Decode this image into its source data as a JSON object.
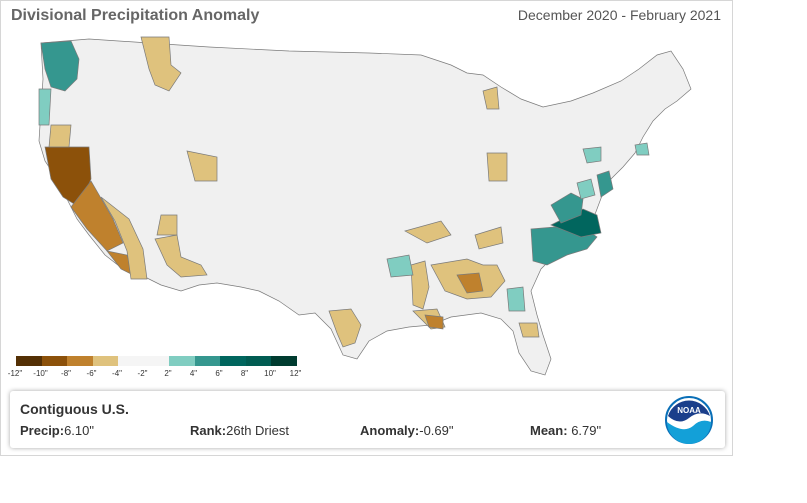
{
  "header": {
    "title": "Divisional Precipitation Anomaly",
    "period": "December 2020 - February 2021"
  },
  "legend": {
    "colors": [
      "#543005",
      "#8c510a",
      "#bf812d",
      "#dfc27d",
      "#f5f5f5",
      "#f5f5f5",
      "#80cdc1",
      "#35978f",
      "#01665e",
      "#015c52",
      "#003c30"
    ],
    "tick_labels": [
      "-12\"",
      "-10\"",
      "-8\"",
      "-6\"",
      "-4\"",
      "-2\"",
      "2\"",
      "4\"",
      "6\"",
      "8\"",
      "10\"",
      "12\""
    ]
  },
  "stats": {
    "region": "Contiguous U.S.",
    "precip_label": "Precip:",
    "precip_value": "6.10\"",
    "rank_label": "Rank:",
    "rank_value": "26th Driest",
    "anomaly_label": "Anomaly:",
    "anomaly_value": "-0.69\"",
    "mean_label": "Mean:",
    "mean_value": "6.79\""
  },
  "logo": {
    "text": "NOAA"
  },
  "map_colors": {
    "land": "#f0f0f0",
    "border": "#7a7a7a",
    "dry_light": "#dfc27d",
    "dry_mid": "#bf812d",
    "dry_dark": "#8c510a",
    "wet_light": "#80cdc1",
    "wet_mid": "#35978f",
    "wet_dark": "#01665e"
  }
}
